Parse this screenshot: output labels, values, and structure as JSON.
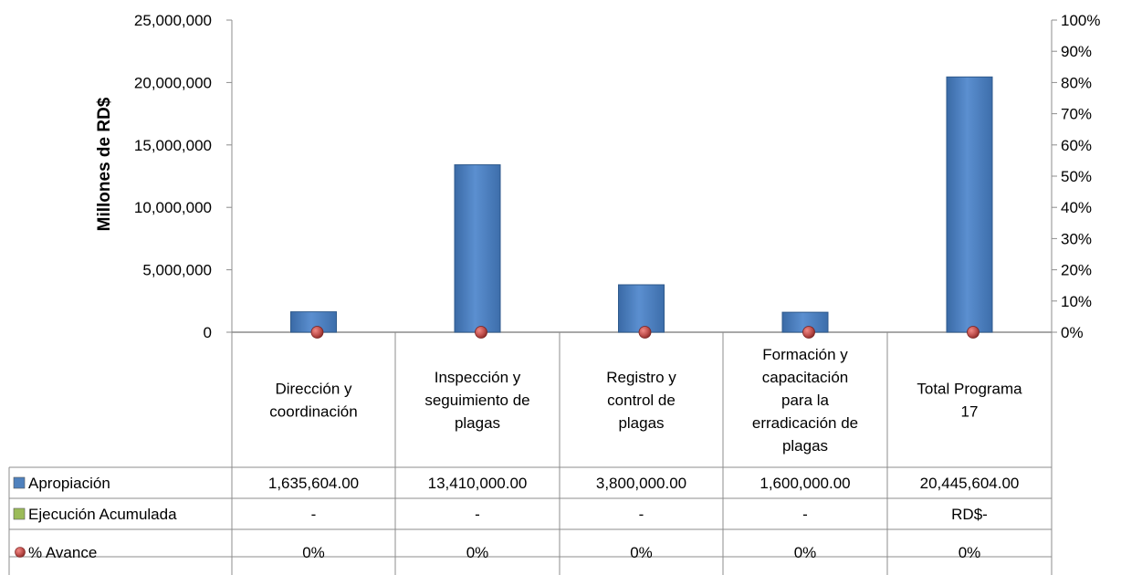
{
  "chart_data": {
    "type": "bar",
    "ylabel": "Millones de RD$",
    "ylim": [
      0,
      25000000
    ],
    "y_ticks": [
      "0",
      "5,000,000",
      "10,000,000",
      "15,000,000",
      "20,000,000",
      "25,000,000"
    ],
    "y2lim": [
      0,
      1
    ],
    "y2_ticks": [
      "0%",
      "10%",
      "20%",
      "30%",
      "40%",
      "50%",
      "60%",
      "70%",
      "80%",
      "90%",
      "100%"
    ],
    "grid": false,
    "categories": [
      [
        "Dirección y",
        "coordinación"
      ],
      [
        "Inspección y",
        "seguimiento de",
        "plagas"
      ],
      [
        "Registro y",
        "control de",
        "plagas"
      ],
      [
        "Formación y",
        "capacitación",
        "para la",
        "erradicación de",
        "plagas"
      ],
      [
        "Total Programa",
        "17"
      ]
    ],
    "series": [
      {
        "name": "Apropiación",
        "kind": "bar",
        "axis": "left",
        "color": "#4f81bd",
        "values": [
          1635604,
          13410000,
          3800000,
          1600000,
          20445604
        ],
        "table_values": [
          "1,635,604.00",
          "13,410,000.00",
          "3,800,000.00",
          "1,600,000.00",
          "20,445,604.00"
        ]
      },
      {
        "name": "Ejecución Acumulada",
        "kind": "bar",
        "axis": "left",
        "color": "#9bbb59",
        "values": [
          0,
          0,
          0,
          0,
          0
        ],
        "table_values": [
          "-",
          "-",
          "-",
          "-",
          "RD$-"
        ]
      },
      {
        "name": "% Avance",
        "kind": "marker",
        "axis": "right",
        "color": "#c0504d",
        "values": [
          0,
          0,
          0,
          0,
          0
        ],
        "table_values": [
          "0%",
          "0%",
          "0%",
          "0%",
          "0%"
        ]
      }
    ],
    "legend_position": "data-table"
  }
}
